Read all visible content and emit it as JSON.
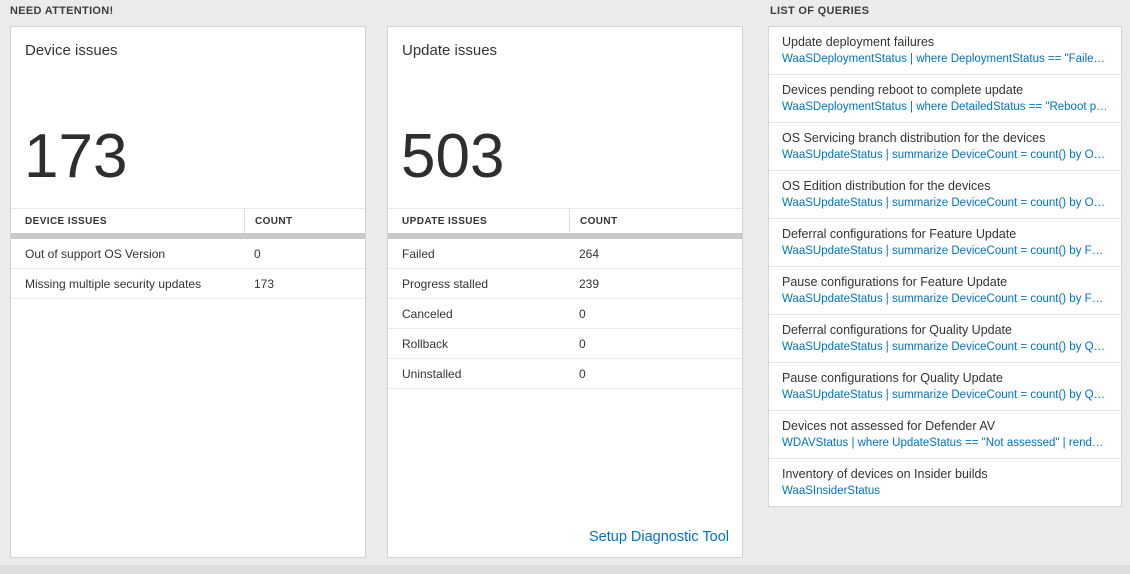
{
  "page": {
    "sections": {
      "need_attention": "NEED ATTENTION!",
      "list_of_queries": "LIST OF QUERIES"
    }
  },
  "device_card": {
    "title": "Device issues",
    "big_number": "173",
    "header_label": "DEVICE ISSUES",
    "header_count": "COUNT",
    "rows": [
      {
        "label": "Out of support OS Version",
        "count": "0"
      },
      {
        "label": "Missing multiple security updates",
        "count": "173"
      }
    ]
  },
  "update_card": {
    "title": "Update issues",
    "big_number": "503",
    "header_label": "UPDATE ISSUES",
    "header_count": "COUNT",
    "rows": [
      {
        "label": "Failed",
        "count": "264"
      },
      {
        "label": "Progress stalled",
        "count": "239"
      },
      {
        "label": "Canceled",
        "count": "0"
      },
      {
        "label": "Rollback",
        "count": "0"
      },
      {
        "label": "Uninstalled",
        "count": "0"
      }
    ],
    "footer_link": "Setup Diagnostic Tool"
  },
  "queries_card": {
    "items": [
      {
        "title": "Update deployment failures",
        "query": "WaaSDeploymentStatus | where DeploymentStatus == \"Failed\" |..."
      },
      {
        "title": "Devices pending reboot to complete update",
        "query": "WaaSDeploymentStatus | where DetailedStatus == \"Reboot pend..."
      },
      {
        "title": "OS Servicing branch distribution for the devices",
        "query": "WaaSUpdateStatus | summarize DeviceCount = count() by OSSer..."
      },
      {
        "title": "OS Edition distribution for the devices",
        "query": "WaaSUpdateStatus | summarize DeviceCount = count() by OSEdit..."
      },
      {
        "title": "Deferral configurations for Feature Update",
        "query": "WaaSUpdateStatus | summarize DeviceCount = count() by Featur..."
      },
      {
        "title": "Pause configurations for Feature Update",
        "query": "WaaSUpdateStatus | summarize DeviceCount = count() by Featur..."
      },
      {
        "title": "Deferral configurations for Quality Update",
        "query": "WaaSUpdateStatus | summarize DeviceCount = count() by Qualit..."
      },
      {
        "title": "Pause configurations for Quality Update",
        "query": "WaaSUpdateStatus | summarize DeviceCount = count() by Qualit..."
      },
      {
        "title": "Devices not assessed for Defender AV",
        "query": "WDAVStatus | where UpdateStatus == \"Not assessed\" | render ta..."
      },
      {
        "title": "Inventory of devices on Insider builds",
        "query": "WaaSInsiderStatus"
      }
    ]
  },
  "colors": {
    "accent_blue": "#0072c6"
  }
}
